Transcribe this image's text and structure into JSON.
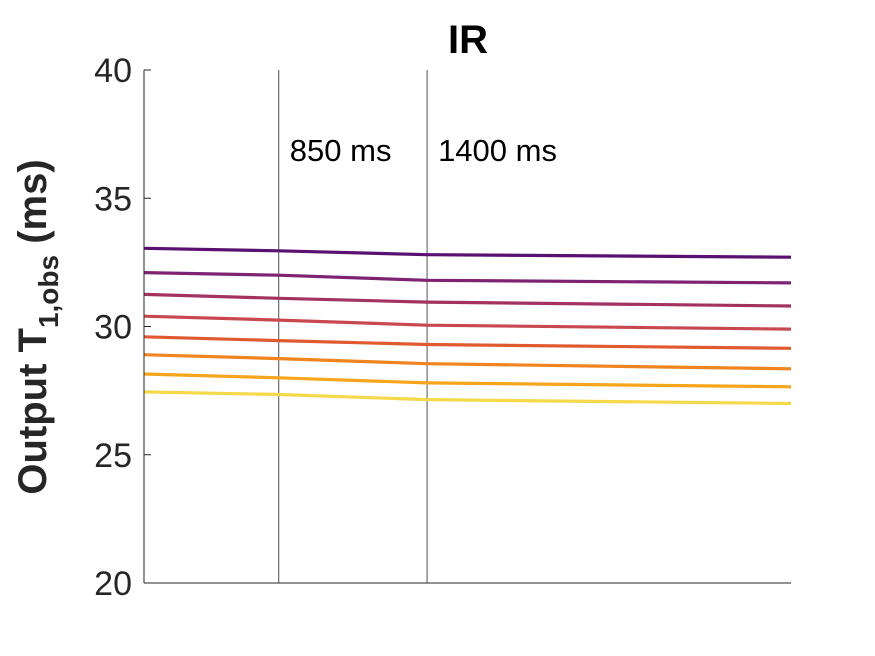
{
  "chart_data": {
    "type": "line",
    "title": "IR",
    "ylabel": {
      "main": "Output T",
      "sub": "1,obs",
      "unit": " (ms)"
    },
    "xlabel": "",
    "xlim": [
      350,
      2750
    ],
    "ylim": [
      20,
      40
    ],
    "yticks": [
      20,
      25,
      30,
      35,
      40
    ],
    "x": [
      350,
      850,
      1400,
      2750
    ],
    "annotations": [
      {
        "x": 850,
        "label": "850 ms"
      },
      {
        "x": 1400,
        "label": "1400 ms"
      }
    ],
    "series": [
      {
        "color": "#5a1070",
        "values": [
          33.05,
          32.95,
          32.8,
          32.7
        ]
      },
      {
        "color": "#7e2272",
        "values": [
          32.1,
          32.0,
          31.8,
          31.7
        ]
      },
      {
        "color": "#a43260",
        "values": [
          31.25,
          31.1,
          30.95,
          30.8
        ]
      },
      {
        "color": "#c94850",
        "values": [
          30.4,
          30.25,
          30.05,
          29.9
        ]
      },
      {
        "color": "#e05a30",
        "values": [
          29.6,
          29.45,
          29.3,
          29.15
        ]
      },
      {
        "color": "#ef8420",
        "values": [
          28.9,
          28.75,
          28.55,
          28.35
        ]
      },
      {
        "color": "#f7a51c",
        "values": [
          28.15,
          28.0,
          27.8,
          27.65
        ]
      },
      {
        "color": "#f5d94a",
        "values": [
          27.45,
          27.35,
          27.15,
          27.0
        ]
      }
    ]
  }
}
